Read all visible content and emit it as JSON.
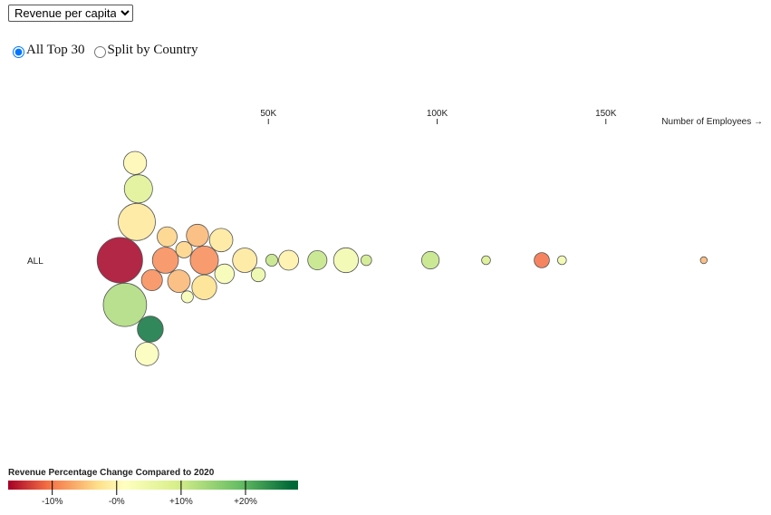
{
  "controls": {
    "metric_options": [
      "Revenue per capita"
    ],
    "metric_selected": "Revenue per capita",
    "view_options": [
      {
        "label": "All Top 30",
        "checked": true
      },
      {
        "label": "Split by Country",
        "checked": false
      }
    ]
  },
  "chart_data": {
    "type": "scatter",
    "encoding": "beeswarm bubble chart; x = number of employees; bubble size = revenue per capita; color = revenue % change vs 2020",
    "xlabel": "Number of Employees →",
    "x_ticks": [
      {
        "value": 50000,
        "label": "50K"
      },
      {
        "value": 100000,
        "label": "100K"
      },
      {
        "value": 150000,
        "label": "150K"
      }
    ],
    "row_label": "ALL",
    "points": [
      {
        "employees": 6000,
        "size": 13.2,
        "change": -16
      },
      {
        "employees": 7500,
        "size": 12.6,
        "change": 14
      },
      {
        "employees": 11500,
        "size": 8.2,
        "change": 9
      },
      {
        "employees": 11000,
        "size": 10.8,
        "change": -1
      },
      {
        "employees": 10500,
        "size": 6.7,
        "change": 1
      },
      {
        "employees": 15000,
        "size": 7.5,
        "change": 27
      },
      {
        "employees": 15500,
        "size": 6.1,
        "change": -8
      },
      {
        "employees": 14000,
        "size": 6.8,
        "change": 3
      },
      {
        "employees": 19500,
        "size": 7.6,
        "change": -8
      },
      {
        "employees": 23500,
        "size": 6.6,
        "change": -5
      },
      {
        "employees": 20000,
        "size": 5.8,
        "change": -3
      },
      {
        "employees": 25000,
        "size": 4.8,
        "change": -3
      },
      {
        "employees": 26000,
        "size": 3.5,
        "change": 4
      },
      {
        "employees": 29000,
        "size": 6.5,
        "change": -5
      },
      {
        "employees": 31000,
        "size": 8.2,
        "change": -8
      },
      {
        "employees": 31000,
        "size": 7.2,
        "change": -2
      },
      {
        "employees": 36000,
        "size": 6.8,
        "change": -1
      },
      {
        "employees": 37000,
        "size": 5.7,
        "change": 4
      },
      {
        "employees": 43000,
        "size": 7.1,
        "change": -1
      },
      {
        "employees": 47000,
        "size": 4.1,
        "change": 6
      },
      {
        "employees": 51000,
        "size": 3.5,
        "change": 12
      },
      {
        "employees": 56000,
        "size": 5.8,
        "change": 0
      },
      {
        "employees": 64500,
        "size": 5.6,
        "change": 12
      },
      {
        "employees": 73000,
        "size": 7.2,
        "change": 5
      },
      {
        "employees": 79000,
        "size": 3.1,
        "change": 11
      },
      {
        "employees": 98000,
        "size": 5.1,
        "change": 12
      },
      {
        "employees": 114500,
        "size": 2.6,
        "change": 10
      },
      {
        "employees": 131000,
        "size": 4.4,
        "change": -10
      },
      {
        "employees": 137000,
        "size": 2.6,
        "change": 5
      },
      {
        "employees": 179000,
        "size": 2.0,
        "change": -5
      }
    ],
    "legend": {
      "title": "Revenue Percentage Change Compared to 2020",
      "ticks": [
        {
          "value": -10,
          "label": "-10%"
        },
        {
          "value": 0,
          "label": "-0%"
        },
        {
          "value": 10,
          "label": "+10%"
        },
        {
          "value": 20,
          "label": "+20%"
        }
      ],
      "colors": [
        "#a50026",
        "#f46d43",
        "#fee08b",
        "#ffffbf",
        "#d9ef8b",
        "#66bd63",
        "#006837"
      ]
    },
    "grid": false
  }
}
